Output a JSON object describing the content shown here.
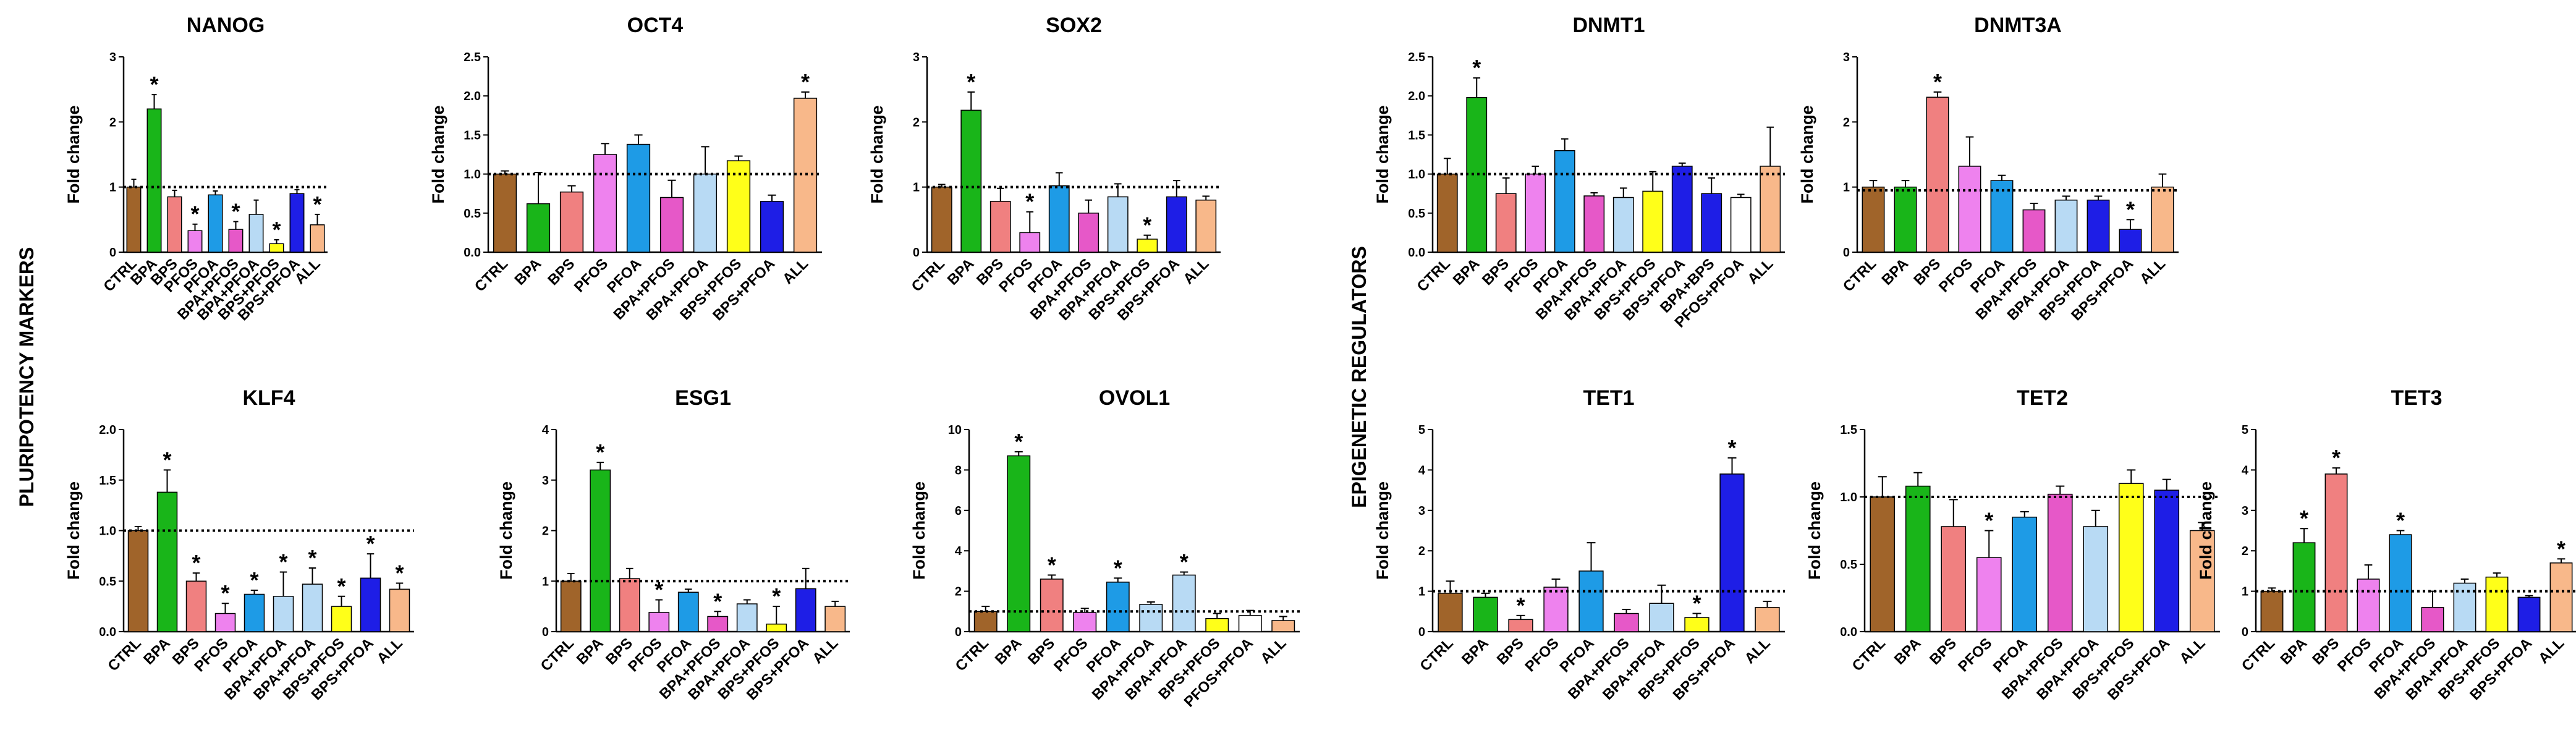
{
  "sections": [
    {
      "label": "PLURIPOTENCY MARKERS"
    },
    {
      "label": "EPIGENETIC REGULATORS"
    }
  ],
  "colors": {
    "CTRL": "#a0642a",
    "BPA": "#19b519",
    "BPS": "#f08080",
    "PFOS": "#ee82ee",
    "PFOA": "#1e9be6",
    "BPA+PFOS": "#e658c8",
    "BPA+PFOA": "#b8daf4",
    "BPS+PFOS": "#ffff19",
    "BPS+PFOA": "#1e1ee6",
    "ALL": "#f8b88a",
    "BPA+BPS": "#1e1ee6",
    "PFOS+PFOA": "#ffffff"
  },
  "chart_data": [
    {
      "type": "bar",
      "title": "NANOG",
      "ylabel": "Fold change",
      "ylim": [
        0,
        3
      ],
      "yticks": [
        0,
        1,
        2,
        3
      ],
      "reference_line": 1,
      "categories": [
        "CTRL",
        "BPA",
        "BPS",
        "PFOS",
        "PFOA",
        "BPA+PFOS",
        "BPA+PFOA",
        "BPS+PFOS",
        "BPS+PFOA",
        "ALL"
      ],
      "values": [
        1.0,
        2.2,
        0.85,
        0.33,
        0.88,
        0.35,
        0.58,
        0.13,
        0.9,
        0.42
      ],
      "errors": [
        0.12,
        0.22,
        0.1,
        0.1,
        0.06,
        0.12,
        0.22,
        0.06,
        0.06,
        0.16
      ],
      "significant": [
        false,
        true,
        false,
        true,
        false,
        true,
        false,
        true,
        false,
        true
      ]
    },
    {
      "type": "bar",
      "title": "OCT4",
      "ylabel": "Fold change",
      "ylim": [
        0,
        2.5
      ],
      "yticks": [
        0.0,
        0.5,
        1.0,
        1.5,
        2.0,
        2.5
      ],
      "reference_line": 1,
      "categories": [
        "CTRL",
        "BPA",
        "BPS",
        "PFOS",
        "PFOA",
        "BPA+PFOS",
        "BPA+PFOA",
        "BPS+PFOS",
        "BPS+PFOA",
        "ALL"
      ],
      "values": [
        1.0,
        0.62,
        0.77,
        1.25,
        1.38,
        0.7,
        1.0,
        1.17,
        0.65,
        1.97
      ],
      "errors": [
        0.04,
        0.4,
        0.08,
        0.14,
        0.12,
        0.22,
        0.35,
        0.06,
        0.08,
        0.08
      ],
      "significant": [
        false,
        false,
        false,
        false,
        false,
        false,
        false,
        false,
        false,
        true
      ]
    },
    {
      "type": "bar",
      "title": "SOX2",
      "ylabel": "Fold change",
      "ylim": [
        0,
        3
      ],
      "yticks": [
        0,
        1,
        2,
        3
      ],
      "reference_line": 1,
      "categories": [
        "CTRL",
        "BPA",
        "BPS",
        "PFOS",
        "PFOA",
        "BPA+PFOS",
        "BPA+PFOA",
        "BPS+PFOS",
        "BPS+PFOA",
        "ALL"
      ],
      "values": [
        1.0,
        2.18,
        0.78,
        0.3,
        1.02,
        0.6,
        0.85,
        0.2,
        0.85,
        0.8
      ],
      "errors": [
        0.04,
        0.28,
        0.2,
        0.32,
        0.2,
        0.2,
        0.2,
        0.06,
        0.25,
        0.06
      ],
      "significant": [
        false,
        true,
        false,
        true,
        false,
        false,
        false,
        true,
        false,
        false
      ]
    },
    {
      "type": "bar",
      "title": "KLF4",
      "ylabel": "Fold change",
      "ylim": [
        0,
        2
      ],
      "yticks": [
        0.0,
        0.5,
        1.0,
        1.5,
        2.0
      ],
      "reference_line": 1,
      "categories": [
        "CTRL",
        "BPA",
        "BPS",
        "PFOS",
        "PFOA",
        "BPA+PFOA",
        "BPA+PFOA",
        "BPS+PFOS",
        "BPS+PFOA",
        "ALL"
      ],
      "values": [
        1.0,
        1.38,
        0.5,
        0.18,
        0.37,
        0.35,
        0.47,
        0.25,
        0.53,
        0.42
      ],
      "errors": [
        0.04,
        0.22,
        0.08,
        0.1,
        0.04,
        0.24,
        0.16,
        0.1,
        0.24,
        0.06
      ],
      "significant": [
        false,
        true,
        true,
        true,
        true,
        true,
        true,
        true,
        true,
        true
      ]
    },
    {
      "type": "bar",
      "title": "ESG1",
      "ylabel": "Fold change",
      "ylim": [
        0,
        4
      ],
      "yticks": [
        0,
        1,
        2,
        3,
        4
      ],
      "reference_line": 1,
      "categories": [
        "CTRL",
        "BPA",
        "BPS",
        "PFOS",
        "PFOA",
        "BPA+PFOS",
        "BPA+PFOA",
        "BPS+PFOS",
        "BPS+PFOA",
        "ALL"
      ],
      "values": [
        1.0,
        3.2,
        1.05,
        0.38,
        0.78,
        0.3,
        0.55,
        0.15,
        0.85,
        0.5
      ],
      "errors": [
        0.15,
        0.15,
        0.2,
        0.25,
        0.06,
        0.1,
        0.08,
        0.35,
        0.4,
        0.1
      ],
      "significant": [
        false,
        true,
        false,
        true,
        false,
        true,
        false,
        true,
        false,
        false
      ]
    },
    {
      "type": "bar",
      "title": "OVOL1",
      "ylabel": "Fold change",
      "ylim": [
        0,
        10
      ],
      "yticks": [
        0,
        2,
        4,
        6,
        8,
        10
      ],
      "reference_line": 1,
      "categories": [
        "CTRL",
        "BPA",
        "BPS",
        "PFOS",
        "PFOA",
        "BPA+PFOA",
        "BPA+PFOA",
        "BPS+PFOS",
        "PFOS+PFOA",
        "ALL"
      ],
      "values": [
        1.0,
        8.7,
        2.6,
        0.95,
        2.45,
        1.35,
        2.8,
        0.65,
        0.8,
        0.55
      ],
      "errors": [
        0.25,
        0.2,
        0.2,
        0.2,
        0.2,
        0.12,
        0.15,
        0.25,
        0.25,
        0.2
      ],
      "significant": [
        false,
        true,
        true,
        false,
        true,
        false,
        true,
        false,
        false,
        false
      ]
    },
    {
      "type": "bar",
      "title": "DNMT1",
      "ylabel": "Fold change",
      "ylim": [
        0,
        2.5
      ],
      "yticks": [
        0.0,
        0.5,
        1.0,
        1.5,
        2.0,
        2.5
      ],
      "reference_line": 1,
      "categories": [
        "CTRL",
        "BPA",
        "BPS",
        "PFOS",
        "PFOA",
        "BPA+PFOS",
        "BPA+PFOA",
        "BPS+PFOS",
        "BPS+PFOA",
        "BPA+BPS",
        "PFOS+PFOA",
        "ALL"
      ],
      "values": [
        1.0,
        1.98,
        0.75,
        1.0,
        1.3,
        0.72,
        0.7,
        0.78,
        1.1,
        0.75,
        0.7,
        1.1
      ],
      "errors": [
        0.2,
        0.25,
        0.2,
        0.1,
        0.15,
        0.04,
        0.12,
        0.25,
        0.04,
        0.2,
        0.04,
        0.5
      ],
      "significant": [
        false,
        true,
        false,
        false,
        false,
        false,
        false,
        false,
        false,
        false,
        false,
        false
      ]
    },
    {
      "type": "bar",
      "title": "DNMT3A",
      "ylabel": "Fold change",
      "ylim": [
        0,
        3
      ],
      "yticks": [
        0,
        1,
        2,
        3
      ],
      "reference_line": 0.95,
      "categories": [
        "CTRL",
        "BPA",
        "BPS",
        "PFOS",
        "PFOA",
        "BPA+PFOS",
        "BPA+PFOA",
        "BPS+PFOA",
        "BPS+PFOA",
        "ALL"
      ],
      "values": [
        1.0,
        1.0,
        2.38,
        1.32,
        1.1,
        0.65,
        0.8,
        0.8,
        0.35,
        1.0
      ],
      "errors": [
        0.1,
        0.1,
        0.08,
        0.45,
        0.08,
        0.1,
        0.06,
        0.06,
        0.15,
        0.2
      ],
      "significant": [
        false,
        false,
        true,
        false,
        false,
        false,
        false,
        false,
        true,
        false
      ]
    },
    {
      "type": "bar",
      "title": "TET1",
      "ylabel": "Fold change",
      "ylim": [
        0,
        5
      ],
      "yticks": [
        0,
        1,
        2,
        3,
        4,
        5
      ],
      "reference_line": 1,
      "categories": [
        "CTRL",
        "BPA",
        "BPS",
        "PFOS",
        "PFOA",
        "BPA+PFOS",
        "BPA+PFOA",
        "BPS+PFOS",
        "BPS+PFOA",
        "ALL"
      ],
      "values": [
        0.95,
        0.85,
        0.3,
        1.1,
        1.5,
        0.45,
        0.7,
        0.35,
        3.9,
        0.6
      ],
      "errors": [
        0.3,
        0.1,
        0.1,
        0.2,
        0.7,
        0.1,
        0.45,
        0.1,
        0.4,
        0.15
      ],
      "significant": [
        false,
        false,
        true,
        false,
        false,
        false,
        false,
        true,
        true,
        false
      ]
    },
    {
      "type": "bar",
      "title": "TET2",
      "ylabel": "Fold change",
      "ylim": [
        0,
        1.5
      ],
      "yticks": [
        0.0,
        0.5,
        1.0,
        1.5
      ],
      "reference_line": 1,
      "categories": [
        "CTRL",
        "BPA",
        "BPS",
        "PFOS",
        "PFOA",
        "BPA+PFOS",
        "BPA+PFOA",
        "BPS+PFOS",
        "BPS+PFOA",
        "ALL"
      ],
      "values": [
        1.0,
        1.08,
        0.78,
        0.55,
        0.85,
        1.02,
        0.78,
        1.1,
        1.05,
        0.75
      ],
      "errors": [
        0.15,
        0.1,
        0.2,
        0.2,
        0.04,
        0.06,
        0.12,
        0.1,
        0.08,
        0.06
      ],
      "significant": [
        false,
        false,
        false,
        true,
        false,
        false,
        false,
        false,
        false,
        false
      ]
    },
    {
      "type": "bar",
      "title": "TET3",
      "ylabel": "Fold change",
      "ylim": [
        0,
        5
      ],
      "yticks": [
        0,
        1,
        2,
        3,
        4,
        5
      ],
      "reference_line": 1,
      "categories": [
        "CTRL",
        "BPA",
        "BPS",
        "PFOS",
        "PFOA",
        "BPA+PFOS",
        "BPA+PFOA",
        "BPS+PFOS",
        "BPS+PFOA",
        "ALL"
      ],
      "values": [
        1.0,
        2.2,
        3.9,
        1.3,
        2.4,
        0.6,
        1.2,
        1.35,
        0.85,
        1.7
      ],
      "errors": [
        0.08,
        0.35,
        0.15,
        0.35,
        0.1,
        0.4,
        0.1,
        0.1,
        0.04,
        0.1
      ],
      "significant": [
        false,
        true,
        true,
        false,
        true,
        false,
        false,
        false,
        false,
        true
      ]
    }
  ]
}
